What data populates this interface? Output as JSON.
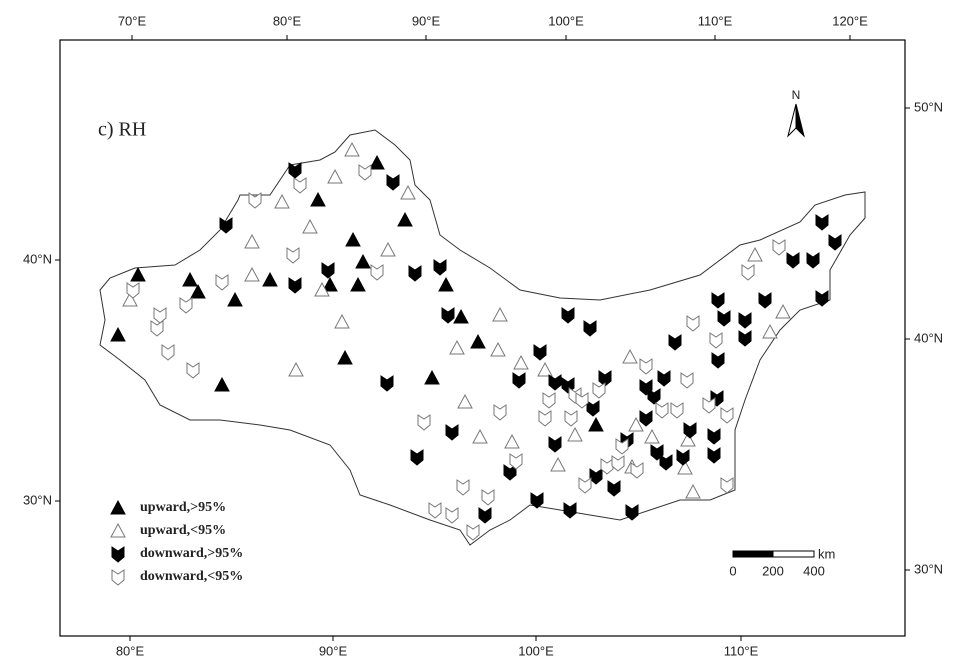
{
  "panel_label": "c) RH",
  "north_label": "N",
  "top_axis": [
    "70°E",
    "80°E",
    "90°E",
    "100°E",
    "110°E",
    "120°E"
  ],
  "bottom_axis": [
    "80°E",
    "90°E",
    "100°E",
    "110°E"
  ],
  "left_axis": [
    "40°N",
    "30°N"
  ],
  "right_axis": [
    "50°N",
    "40°N",
    "30°N"
  ],
  "legend": [
    "upward,>95%",
    "upward,<95%",
    "downward,>95%",
    "downward,<95%"
  ],
  "scale_bar": {
    "unit": "km",
    "labels": [
      "0",
      "200",
      "400"
    ]
  }
}
